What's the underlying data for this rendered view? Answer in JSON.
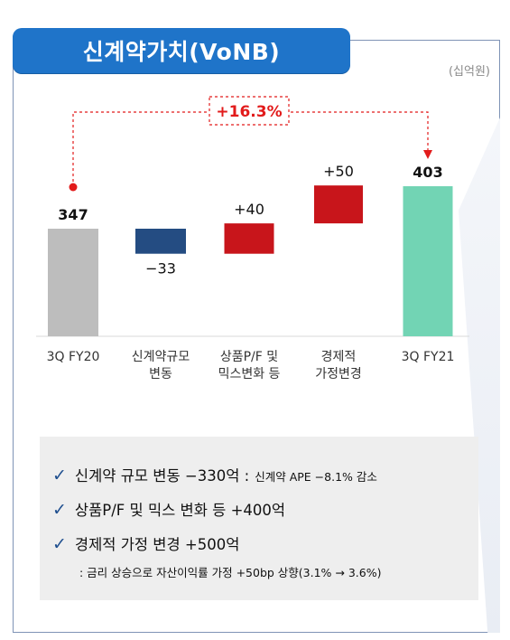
{
  "title": "신계약가치(VoNB)",
  "unit": "(십억원)",
  "growth_label": "+16.3%",
  "colors": {
    "title_bg": "#1f74c9",
    "base_bar": "#bdbdbd",
    "negative_bar": "#244c82",
    "positive_bar": "#c8151b",
    "result_bar": "#72d4b4",
    "connector": "#e21b1b"
  },
  "chart_data": {
    "type": "waterfall",
    "categories": [
      "3Q FY20",
      "신계약규모\n변동",
      "상품P/F 및\n믹스변화 등",
      "경제적\n가정변경",
      "3Q FY21"
    ],
    "values": [
      347,
      -33,
      40,
      50,
      403
    ],
    "value_labels": [
      "347",
      "−33",
      "+40",
      "+50",
      "403"
    ],
    "kinds": [
      "total",
      "delta",
      "delta",
      "delta",
      "total"
    ]
  },
  "summary": {
    "items": [
      {
        "main": "신계약 규모 변동  −330억 :",
        "sub": "신계약 APE −8.1% 감소"
      },
      {
        "main": "상품P/F 및 믹스 변화 등  +400억",
        "sub": ""
      },
      {
        "main": "경제적 가정 변경 +500억",
        "sub": ""
      }
    ],
    "note": ": 금리 상승으로 자산이익률 가정 +50bp 상향(3.1% → 3.6%)",
    "check_icon": "✓"
  }
}
